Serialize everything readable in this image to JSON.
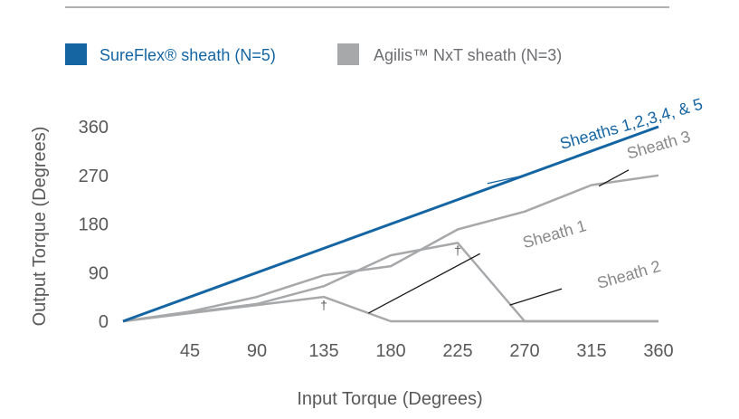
{
  "chart_data": {
    "type": "line",
    "xlabel": "Input Torque (Degrees)",
    "ylabel": "Output Torque (Degrees)",
    "xlim": [
      0,
      360
    ],
    "ylim": [
      0,
      360
    ],
    "x_ticks": [
      45,
      90,
      135,
      180,
      225,
      270,
      315,
      360
    ],
    "y_ticks": [
      0,
      90,
      180,
      270,
      360
    ],
    "grid": false,
    "legend_position": "top-left",
    "legend": [
      {
        "label": "SureFlex® sheath (N=5)",
        "color": "#1565a3"
      },
      {
        "label": "Agilis™ NxT sheath (N=3)",
        "color": "#a7a8aa"
      }
    ],
    "series": [
      {
        "group": "SureFlex",
        "color": "#1565a3",
        "x": [
          0,
          360
        ],
        "y": [
          0,
          360
        ]
      },
      {
        "group": "Agilis",
        "color": "#a7a8aa",
        "x": [
          0,
          45,
          90,
          135,
          180,
          225,
          270,
          315,
          360
        ],
        "y": [
          0,
          18,
          45,
          85,
          102,
          170,
          203,
          252,
          270
        ]
      },
      {
        "group": "Agilis",
        "color": "#a7a8aa",
        "x": [
          0,
          90,
          135,
          180,
          225,
          270,
          360
        ],
        "y": [
          0,
          32,
          65,
          122,
          145,
          0,
          0
        ]
      },
      {
        "group": "Agilis",
        "color": "#a7a8aa",
        "x": [
          0,
          90,
          135,
          180,
          360
        ],
        "y": [
          0,
          30,
          45,
          0,
          0
        ]
      }
    ],
    "annotations": [
      {
        "text": "Sheaths 1,2,3,4, & 5",
        "color": "#1565a3",
        "x": 295,
        "y": 318,
        "leader": [
          [
            270,
            270
          ],
          [
            245,
            255
          ]
        ]
      },
      {
        "text": "Sheath 3",
        "color": "#888888",
        "x": 340,
        "y": 300,
        "leader": [
          [
            340,
            280
          ],
          [
            320,
            250
          ]
        ]
      },
      {
        "text": "Sheath 1",
        "color": "#888888",
        "x": 270,
        "y": 135,
        "leader": [
          [
            240,
            125
          ],
          [
            165,
            15
          ]
        ]
      },
      {
        "text": "Sheath 2",
        "color": "#888888",
        "x": 320,
        "y": 60,
        "leader": [
          [
            295,
            60
          ],
          [
            260,
            30
          ]
        ]
      },
      {
        "text": "†",
        "color": "#555555",
        "x": 135,
        "y": 22
      },
      {
        "text": "†",
        "color": "#555555",
        "x": 225,
        "y": 123
      }
    ]
  }
}
